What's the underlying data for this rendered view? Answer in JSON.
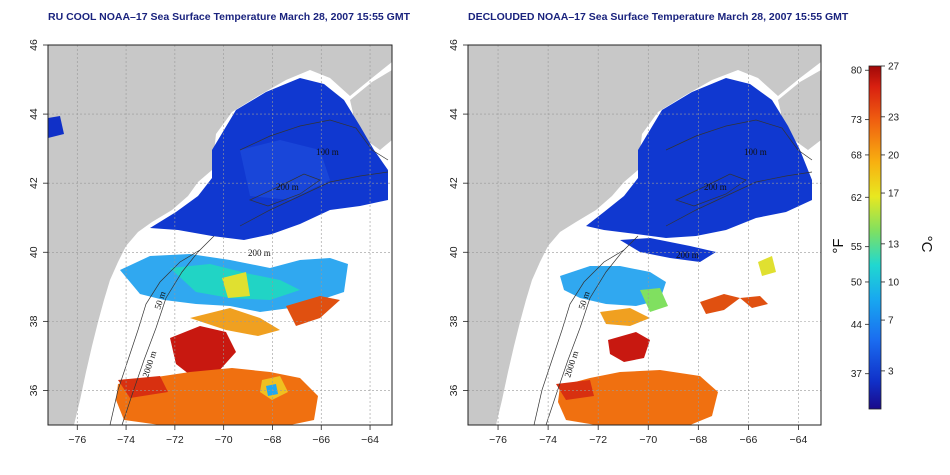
{
  "titles": {
    "left": "RU COOL NOAA–17 Sea Surface Temperature March 28, 2007 15:55 GMT",
    "right": "DECLOUDED NOAA–17 Sea Surface Temperature March 28, 2007 15:55 GMT"
  },
  "axes": {
    "x_ticks": [
      -76,
      -74,
      -72,
      -70,
      -68,
      -66,
      -64
    ],
    "y_ticks": [
      36,
      38,
      40,
      42,
      44,
      46
    ],
    "x_range": [
      -77.2,
      -63.1
    ],
    "y_range": [
      35.0,
      46.0
    ]
  },
  "contour_labels": {
    "m200a": "200 m",
    "m200b": "200 m",
    "m50": "50 m",
    "m2000": "2000 m",
    "m100": "100 m",
    "m50b": "50 m"
  },
  "colorbar": {
    "fahrenheit_ticks": [
      "80",
      "73",
      "68",
      "62",
      "55",
      "50",
      "44",
      "37"
    ],
    "celsius_ticks": [
      "27",
      "23",
      "20",
      "17",
      "13",
      "10",
      "7",
      "3"
    ],
    "fahrenheit_label": "°F",
    "celsius_label": "°C",
    "celsius_range": [
      0,
      27
    ]
  },
  "colors": {
    "land": "#c8c8c8",
    "cold": "#1030c8",
    "warm": "#d42010",
    "no_data": "#ffffff"
  }
}
